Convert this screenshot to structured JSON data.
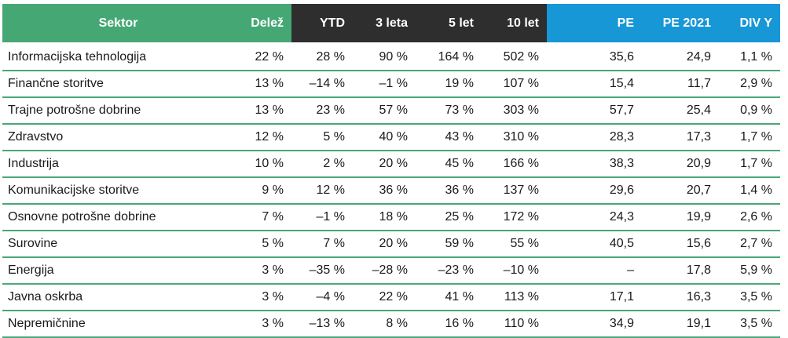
{
  "table": {
    "headers": [
      "Sektor",
      "Delež",
      "YTD",
      "3 leta",
      "5 let",
      "10 let",
      "PE",
      "PE 2021",
      "DIV Y"
    ],
    "rows": [
      [
        "Informacijska tehnologija",
        "22 %",
        "28 %",
        "90 %",
        "164 %",
        "502 %",
        "35,6",
        "24,9",
        "1,1 %"
      ],
      [
        "Finančne storitve",
        "13 %",
        "–14 %",
        "–1 %",
        "19 %",
        "107 %",
        "15,4",
        "11,7",
        "2,9 %"
      ],
      [
        "Trajne potrošne dobrine",
        "13 %",
        "23 %",
        "57 %",
        "73 %",
        "303 %",
        "57,7",
        "25,4",
        "0,9 %"
      ],
      [
        "Zdravstvo",
        "12 %",
        "5 %",
        "40 %",
        "43 %",
        "310 %",
        "28,3",
        "17,3",
        "1,7 %"
      ],
      [
        "Industrija",
        "10 %",
        "2 %",
        "20 %",
        "45 %",
        "166 %",
        "38,3",
        "20,9",
        "1,7 %"
      ],
      [
        "Komunikacijske storitve",
        "9 %",
        "12 %",
        "36 %",
        "36 %",
        "137 %",
        "29,6",
        "20,7",
        "1,4 %"
      ],
      [
        "Osnovne potrošne dobrine",
        "7 %",
        "–1 %",
        "18 %",
        "25 %",
        "172 %",
        "24,3",
        "19,9",
        "2,6 %"
      ],
      [
        "Surovine",
        "5 %",
        "7 %",
        "20 %",
        "59 %",
        "55 %",
        "40,5",
        "15,6",
        "2,7 %"
      ],
      [
        "Energija",
        "3 %",
        "–35 %",
        "–28 %",
        "–23 %",
        "–10 %",
        "–",
        "17,8",
        "5,9 %"
      ],
      [
        "Javna oskrba",
        "3 %",
        "–4 %",
        "22 %",
        "41 %",
        "113 %",
        "17,1",
        "16,3",
        "3,5 %"
      ],
      [
        "Nepremičnine",
        "3 %",
        "–13 %",
        "8 %",
        "16 %",
        "110 %",
        "34,9",
        "19,1",
        "3,5 %"
      ]
    ]
  },
  "colors": {
    "header_green": "#45a874",
    "header_dark": "#2e2e2e",
    "header_blue": "#1797d6",
    "row_border": "#4aa77a"
  }
}
